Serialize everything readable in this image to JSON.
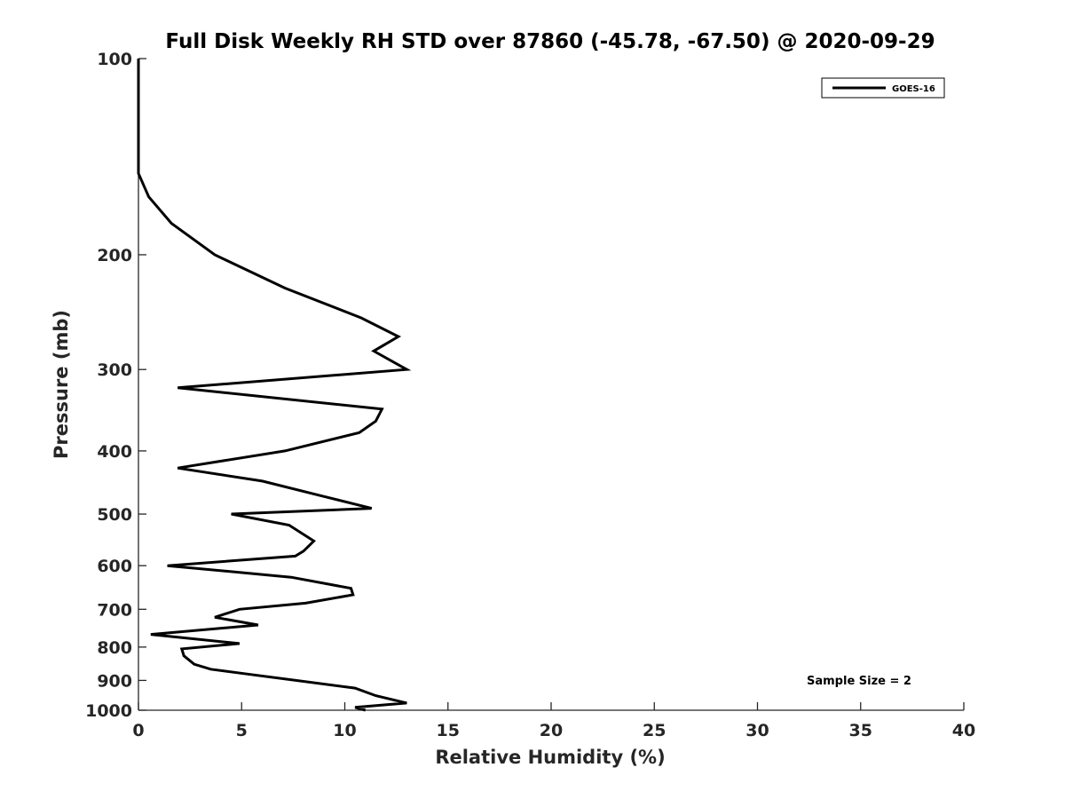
{
  "chart_data": {
    "type": "line",
    "title": "Full Disk Weekly RH STD over 87860 (-45.78, -67.50) @ 2020-09-29",
    "xlabel": "Relative Humidity (%)",
    "ylabel": "Pressure (mb)",
    "xlim": [
      0,
      40
    ],
    "ylim": [
      100,
      1000
    ],
    "y_scale": "log",
    "y_reversed": true,
    "x_ticks": [
      0,
      5,
      10,
      15,
      20,
      25,
      30,
      35,
      40
    ],
    "y_ticks": [
      100,
      200,
      300,
      400,
      500,
      600,
      700,
      800,
      900,
      1000
    ],
    "grid": false,
    "legend_position": "top-right",
    "series": [
      {
        "name": "GOES-16",
        "color": "#000000",
        "points": [
          [
            0,
            100
          ],
          [
            0,
            125
          ],
          [
            0,
            150
          ],
          [
            0.5,
            163
          ],
          [
            1.6,
            179
          ],
          [
            3.7,
            200
          ],
          [
            7.1,
            225
          ],
          [
            10.8,
            250
          ],
          [
            12.6,
            267
          ],
          [
            11.4,
            281
          ],
          [
            13.0,
            300
          ],
          [
            1.9,
            320
          ],
          [
            11.8,
            345
          ],
          [
            11.5,
            360
          ],
          [
            10.7,
            375
          ],
          [
            7.1,
            400
          ],
          [
            1.9,
            425
          ],
          [
            6.0,
            445
          ],
          [
            9.0,
            470
          ],
          [
            11.3,
            490
          ],
          [
            4.5,
            500
          ],
          [
            7.3,
            520
          ],
          [
            8.5,
            550
          ],
          [
            8.0,
            570
          ],
          [
            7.6,
            580
          ],
          [
            1.4,
            600
          ],
          [
            7.4,
            625
          ],
          [
            10.3,
            650
          ],
          [
            10.4,
            665
          ],
          [
            8.1,
            685
          ],
          [
            4.9,
            700
          ],
          [
            3.7,
            720
          ],
          [
            5.8,
            740
          ],
          [
            0.6,
            765
          ],
          [
            4.9,
            790
          ],
          [
            2.1,
            805
          ],
          [
            2.2,
            825
          ],
          [
            2.7,
            850
          ],
          [
            3.5,
            865
          ],
          [
            5.3,
            880
          ],
          [
            10.5,
            925
          ],
          [
            11.5,
            950
          ],
          [
            13.0,
            975
          ],
          [
            10.5,
            990
          ],
          [
            11.0,
            1000
          ]
        ]
      }
    ],
    "annotation": "Sample Size = 2"
  }
}
